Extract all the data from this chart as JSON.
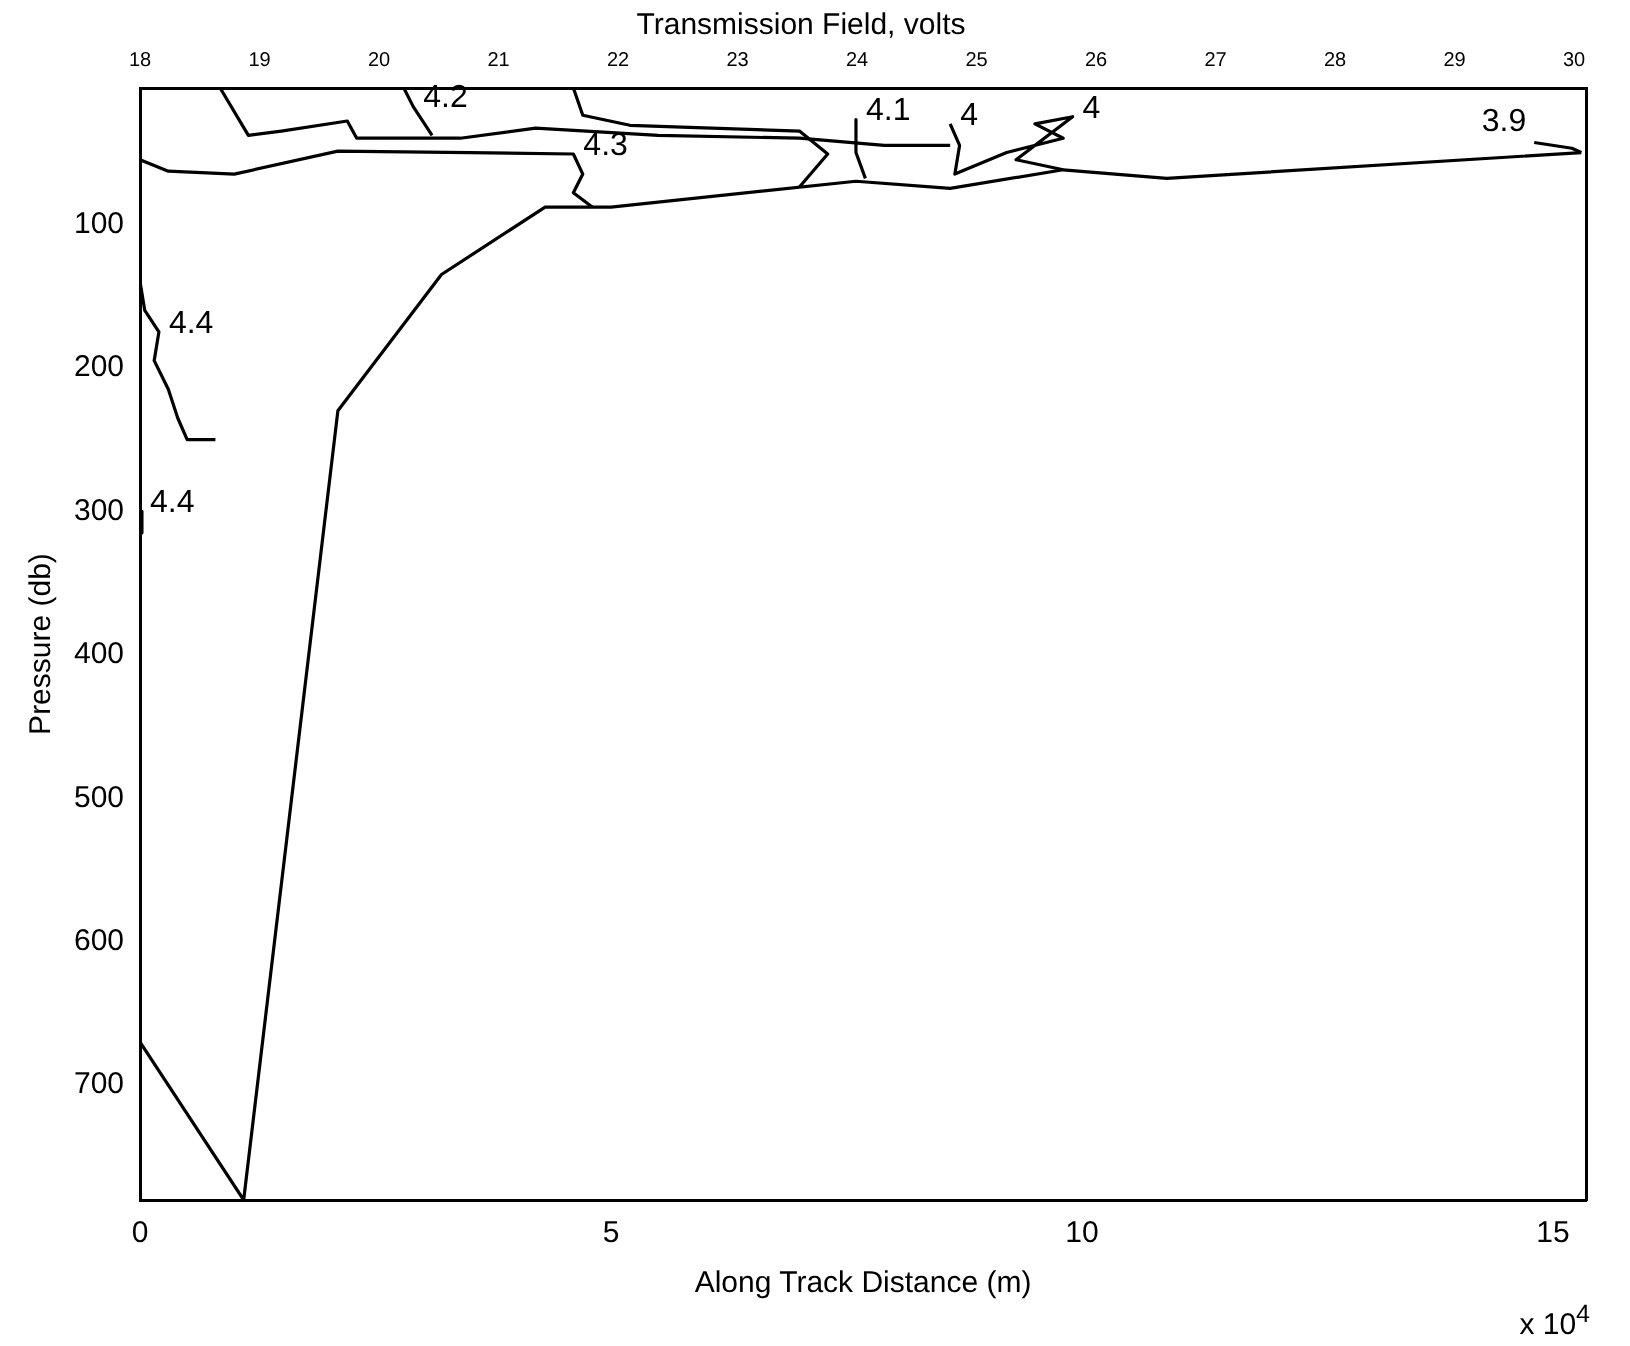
{
  "chart_data": {
    "type": "line",
    "title": "Transmission Field, volts",
    "xlabel": "Along Track Distance (m)",
    "ylabel": "Pressure (db)",
    "xlim": [
      0,
      15.35
    ],
    "xticks": [
      0,
      5,
      10,
      15
    ],
    "ylim": [
      780,
      5
    ],
    "yticks": [
      100,
      200,
      300,
      400,
      500,
      600,
      700
    ],
    "x2lim": [
      18,
      30.1
    ],
    "x2ticks": [
      18,
      19,
      20,
      21,
      22,
      23,
      24,
      25,
      26,
      27,
      28,
      29,
      30
    ],
    "marker": "none",
    "line_style": "solid",
    "series": [
      {
        "type": "line",
        "color": "#000000",
        "x": [
          0,
          1.1,
          2.1,
          3.2,
          4.3,
          5.0,
          7.6,
          8.6,
          9.8,
          10.9,
          15.3
        ],
        "values": [
          670,
          780,
          230,
          135,
          88,
          88,
          70,
          75,
          62,
          68,
          50
        ]
      },
      {
        "type": "line",
        "color": "#000000",
        "x": [
          0,
          0.05,
          0.2,
          0.15,
          0.3,
          0.4,
          0.5,
          0.8
        ],
        "values": [
          140,
          160,
          175,
          195,
          215,
          235,
          250,
          250
        ]
      },
      {
        "type": "line",
        "color": "#000000",
        "x": [
          0,
          0.02
        ],
        "values": [
          300,
          315
        ]
      },
      {
        "type": "line",
        "color": "#000000",
        "x": [
          0,
          0.3,
          1.0,
          2.1,
          3.5,
          4.6,
          4.7,
          4.6,
          4.8
        ],
        "values": [
          55,
          63,
          65,
          49,
          50,
          51,
          65,
          78,
          88
        ]
      },
      {
        "type": "line",
        "color": "#000000",
        "x": [
          0.85,
          1.15,
          1.5,
          2.2,
          2.3,
          3.4,
          4.2,
          5.5,
          7.0,
          7.9,
          8.6
        ],
        "values": [
          5,
          38,
          35,
          28,
          40,
          40,
          33,
          38,
          40,
          45,
          45
        ]
      },
      {
        "type": "line",
        "color": "#000000",
        "x": [
          2.8,
          2.9,
          3.1
        ],
        "values": [
          5,
          18,
          38
        ]
      },
      {
        "type": "line",
        "color": "#000000",
        "x": [
          4.6,
          4.7,
          5.2,
          7.0,
          7.3,
          7.0
        ],
        "values": [
          5,
          24,
          31,
          35,
          51,
          74
        ]
      },
      {
        "type": "line",
        "color": "#000000",
        "x": [
          7.6,
          7.6,
          7.7
        ],
        "values": [
          27,
          50,
          68
        ]
      },
      {
        "type": "line",
        "color": "#000000",
        "x": [
          8.6,
          8.7,
          8.65,
          9.2,
          9.8,
          9.5,
          9.9,
          9.3,
          9.8
        ],
        "values": [
          30,
          45,
          65,
          50,
          40,
          30,
          25,
          55,
          62
        ]
      },
      {
        "type": "line",
        "color": "#000000",
        "x": [
          14.8,
          15.2,
          15.3
        ],
        "values": [
          43,
          47,
          50
        ]
      }
    ],
    "annotations": [
      {
        "text": "4.4",
        "x": 0.2,
        "y": 175
      },
      {
        "text": "4.4",
        "x": 0,
        "y": 300
      },
      {
        "text": "4.3",
        "x": 4.6,
        "y": 51
      },
      {
        "text": "4.2",
        "x": 2.9,
        "y": 18
      },
      {
        "text": "4.1",
        "x": 7.6,
        "y": 27
      },
      {
        "text": "4",
        "x": 8.6,
        "y": 30
      },
      {
        "text": "4",
        "x": 9.9,
        "y": 25
      },
      {
        "text": "3.9",
        "x": 14.8,
        "y": 43
      },
      "x 10$^{4}$"
    ]
  }
}
